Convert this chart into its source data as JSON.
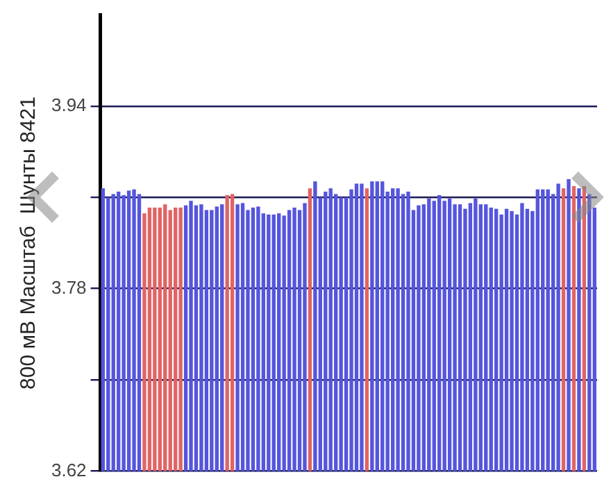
{
  "chart_data": {
    "type": "bar",
    "ylabel": "800 мВ Масштаб  Шунты 8421",
    "categories": [
      null,
      null,
      null,
      null,
      null,
      null,
      null,
      null,
      null,
      null,
      null,
      null,
      null,
      null,
      null,
      null,
      null,
      null,
      null,
      null,
      null,
      null,
      null,
      null,
      null,
      null,
      null,
      null,
      null,
      null,
      null,
      null,
      null,
      null,
      null,
      null,
      null,
      null,
      null,
      null,
      null,
      null,
      null,
      null,
      null,
      null,
      null,
      null,
      null,
      null,
      null,
      null,
      null,
      null,
      null,
      null,
      null,
      null,
      null,
      null,
      null,
      null,
      null,
      null,
      null,
      null,
      null,
      null,
      null,
      null,
      null,
      null,
      null,
      null,
      null,
      null,
      null,
      null,
      null,
      null,
      null,
      null,
      null,
      null,
      null,
      null,
      null,
      null,
      null,
      null,
      null,
      null,
      null,
      null,
      null,
      null
    ],
    "values": [
      3.868,
      3.86,
      3.863,
      3.865,
      3.862,
      3.866,
      3.867,
      3.863,
      3.846,
      3.851,
      3.851,
      3.851,
      3.854,
      3.849,
      3.851,
      3.851,
      3.853,
      3.857,
      3.853,
      3.854,
      3.849,
      3.849,
      3.852,
      3.854,
      3.862,
      3.863,
      3.854,
      3.855,
      3.849,
      3.851,
      3.852,
      3.846,
      3.845,
      3.845,
      3.846,
      3.844,
      3.849,
      3.851,
      3.849,
      3.855,
      3.868,
      3.874,
      3.86,
      3.865,
      3.868,
      3.863,
      3.86,
      3.86,
      3.867,
      3.872,
      3.872,
      3.868,
      3.874,
      3.874,
      3.874,
      3.865,
      3.868,
      3.868,
      3.863,
      3.865,
      3.849,
      3.853,
      3.854,
      3.859,
      3.857,
      3.862,
      3.857,
      3.859,
      3.854,
      3.854,
      3.85,
      3.855,
      3.859,
      3.854,
      3.854,
      3.851,
      3.85,
      3.845,
      3.85,
      3.848,
      3.845,
      3.855,
      3.85,
      3.848,
      3.867,
      3.867,
      3.867,
      3.863,
      3.872,
      3.868,
      3.876,
      3.87,
      3.868,
      3.87,
      3.863,
      3.851
    ],
    "colors": [
      "#5555dd",
      "#5555dd",
      "#5555dd",
      "#5555dd",
      "#5555dd",
      "#5555dd",
      "#5555dd",
      "#5555dd",
      "#e06464",
      "#e06464",
      "#e06464",
      "#e06464",
      "#e06464",
      "#e06464",
      "#e06464",
      "#e06464",
      "#5555dd",
      "#5555dd",
      "#5555dd",
      "#5555dd",
      "#5555dd",
      "#5555dd",
      "#5555dd",
      "#5555dd",
      "#e06464",
      "#e06464",
      "#5555dd",
      "#5555dd",
      "#5555dd",
      "#5555dd",
      "#5555dd",
      "#5555dd",
      "#5555dd",
      "#5555dd",
      "#5555dd",
      "#5555dd",
      "#5555dd",
      "#5555dd",
      "#5555dd",
      "#5555dd",
      "#e06464",
      "#5555dd",
      "#5555dd",
      "#5555dd",
      "#5555dd",
      "#5555dd",
      "#5555dd",
      "#5555dd",
      "#5555dd",
      "#5555dd",
      "#5555dd",
      "#e06464",
      "#5555dd",
      "#5555dd",
      "#5555dd",
      "#5555dd",
      "#5555dd",
      "#5555dd",
      "#5555dd",
      "#5555dd",
      "#5555dd",
      "#5555dd",
      "#5555dd",
      "#5555dd",
      "#5555dd",
      "#5555dd",
      "#5555dd",
      "#5555dd",
      "#5555dd",
      "#5555dd",
      "#5555dd",
      "#5555dd",
      "#5555dd",
      "#5555dd",
      "#5555dd",
      "#5555dd",
      "#5555dd",
      "#5555dd",
      "#5555dd",
      "#5555dd",
      "#5555dd",
      "#5555dd",
      "#5555dd",
      "#5555dd",
      "#5555dd",
      "#5555dd",
      "#5555dd",
      "#5555dd",
      "#5555dd",
      "#e06464",
      "#5555dd",
      "#e06464",
      "#5555dd",
      "#e06464",
      "#5555dd",
      "#5555dd"
    ],
    "ylim": [
      3.62,
      4.02
    ],
    "yticks": [
      {
        "value": 3.62,
        "label": "3.62"
      },
      {
        "value": 3.7,
        "label": null
      },
      {
        "value": 3.78,
        "label": "3.78"
      },
      {
        "value": 3.86,
        "label": null
      },
      {
        "value": 3.94,
        "label": "3.94"
      }
    ],
    "grid": "y",
    "tick_labels": "y"
  }
}
